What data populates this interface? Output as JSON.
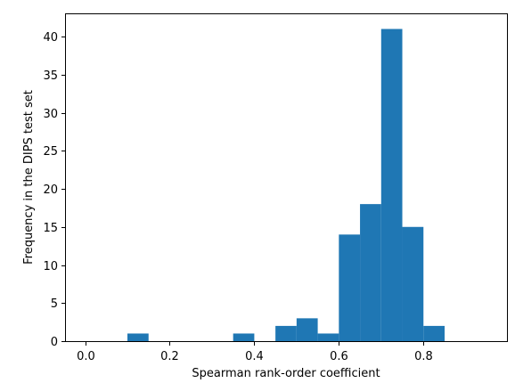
{
  "chart_data": {
    "type": "bar",
    "title": "",
    "xlabel": "Spearman rank-order coefficient",
    "ylabel": "Frequency in the DIPS test set",
    "bin_width": 0.05,
    "bins": [
      {
        "x0": 0.1,
        "x1": 0.15,
        "count": 1
      },
      {
        "x0": 0.35,
        "x1": 0.4,
        "count": 1
      },
      {
        "x0": 0.45,
        "x1": 0.5,
        "count": 2
      },
      {
        "x0": 0.5,
        "x1": 0.55,
        "count": 3
      },
      {
        "x0": 0.55,
        "x1": 0.6,
        "count": 1
      },
      {
        "x0": 0.6,
        "x1": 0.65,
        "count": 14
      },
      {
        "x0": 0.65,
        "x1": 0.7,
        "count": 18
      },
      {
        "x0": 0.7,
        "x1": 0.75,
        "count": 41
      },
      {
        "x0": 0.75,
        "x1": 0.8,
        "count": 15
      },
      {
        "x0": 0.8,
        "x1": 0.85,
        "count": 2
      }
    ],
    "xlim": [
      -0.0475,
      0.9975
    ],
    "ylim": [
      0,
      43.05
    ],
    "xticks": [
      0.0,
      0.2,
      0.4,
      0.6,
      0.8
    ],
    "xtick_labels": [
      "0.0",
      "0.2",
      "0.4",
      "0.6",
      "0.8"
    ],
    "yticks": [
      0,
      5,
      10,
      15,
      20,
      25,
      30,
      35,
      40
    ],
    "ytick_labels": [
      "0",
      "5",
      "10",
      "15",
      "20",
      "25",
      "30",
      "35",
      "40"
    ],
    "bar_color": "#1f77b4",
    "grid": false,
    "legend": "none"
  }
}
